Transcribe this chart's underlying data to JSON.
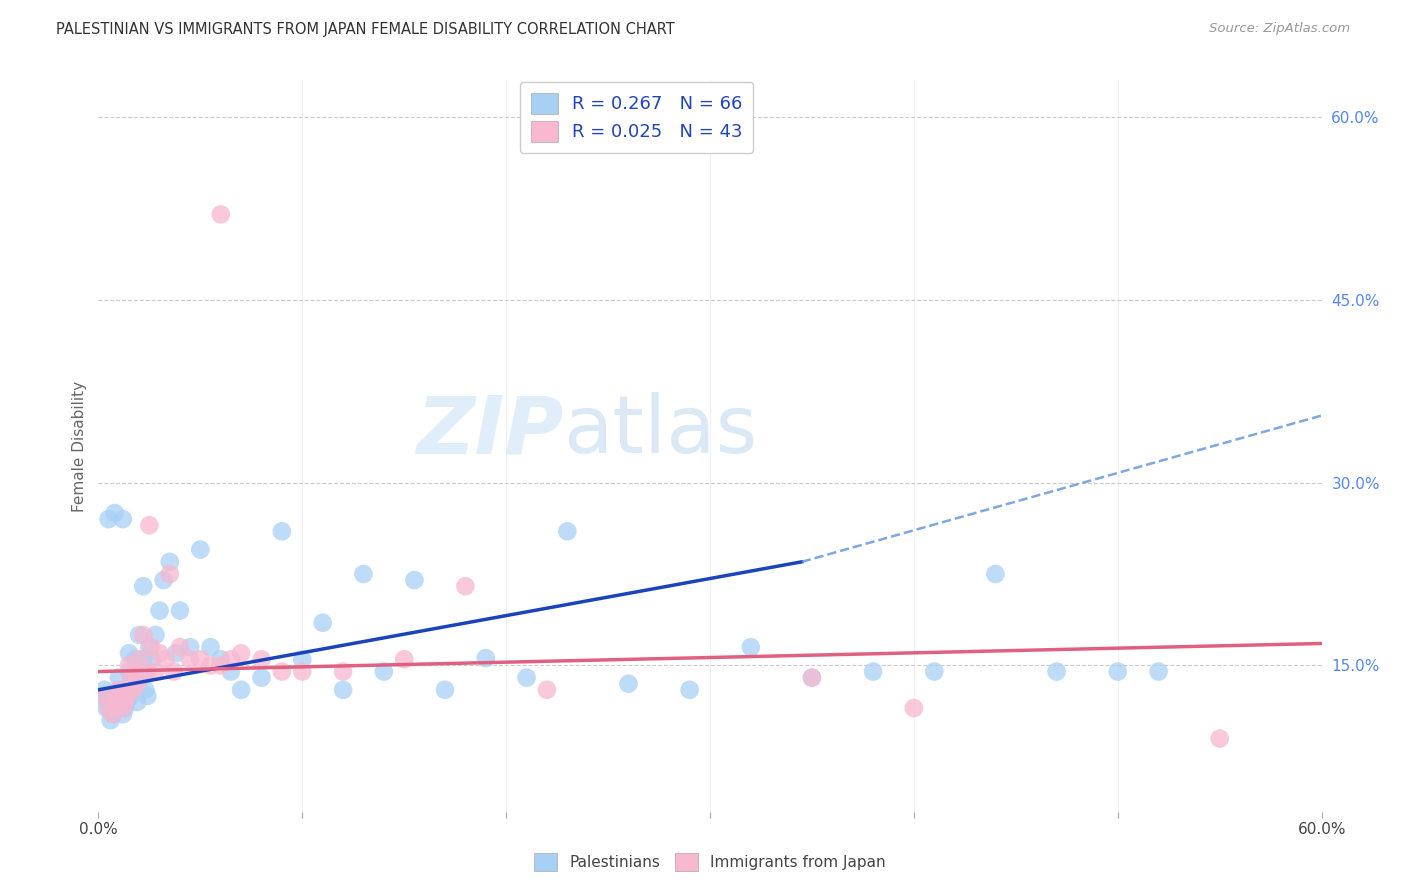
{
  "title": "PALESTINIAN VS IMMIGRANTS FROM JAPAN FEMALE DISABILITY CORRELATION CHART",
  "source": "Source: ZipAtlas.com",
  "ylabel": "Female Disability",
  "xlim": [
    0.0,
    0.6
  ],
  "ylim": [
    0.03,
    0.63
  ],
  "right_yticks": [
    0.15,
    0.3,
    0.45,
    0.6
  ],
  "right_yticklabels": [
    "15.0%",
    "30.0%",
    "45.0%",
    "60.0%"
  ],
  "blue_R": 0.267,
  "blue_N": 66,
  "pink_R": 0.025,
  "pink_N": 43,
  "blue_color": "#a8d0f5",
  "pink_color": "#f7b8d0",
  "trend_blue_solid_color": "#1a44bb",
  "trend_blue_dashed_color": "#6699dd",
  "trend_pink_color": "#e06080",
  "background": "#ffffff",
  "grid_color": "#cccccc",
  "legend_label_blue": "Palestinians",
  "legend_label_pink": "Immigrants from Japan",
  "blue_trend_x0": 0.0,
  "blue_trend_y0": 0.13,
  "blue_trend_x_solid_end": 0.345,
  "blue_trend_y_solid_end": 0.235,
  "blue_trend_x1": 0.6,
  "blue_trend_y1": 0.355,
  "pink_trend_x0": 0.0,
  "pink_trend_y0": 0.145,
  "pink_trend_x1": 0.6,
  "pink_trend_y1": 0.168,
  "blue_x": [
    0.002,
    0.003,
    0.004,
    0.005,
    0.006,
    0.007,
    0.008,
    0.009,
    0.01,
    0.01,
    0.01,
    0.011,
    0.012,
    0.013,
    0.014,
    0.015,
    0.015,
    0.016,
    0.017,
    0.018,
    0.019,
    0.02,
    0.021,
    0.022,
    0.023,
    0.024,
    0.025,
    0.026,
    0.028,
    0.03,
    0.032,
    0.035,
    0.038,
    0.04,
    0.045,
    0.05,
    0.055,
    0.06,
    0.065,
    0.07,
    0.08,
    0.09,
    0.1,
    0.11,
    0.12,
    0.13,
    0.14,
    0.155,
    0.17,
    0.19,
    0.21,
    0.23,
    0.26,
    0.29,
    0.32,
    0.35,
    0.38,
    0.41,
    0.44,
    0.47,
    0.5,
    0.52,
    0.005,
    0.008,
    0.012,
    0.022
  ],
  "blue_y": [
    0.125,
    0.13,
    0.115,
    0.12,
    0.105,
    0.11,
    0.115,
    0.12,
    0.14,
    0.13,
    0.115,
    0.125,
    0.11,
    0.115,
    0.12,
    0.16,
    0.145,
    0.125,
    0.13,
    0.155,
    0.12,
    0.175,
    0.14,
    0.155,
    0.13,
    0.125,
    0.165,
    0.155,
    0.175,
    0.195,
    0.22,
    0.235,
    0.16,
    0.195,
    0.165,
    0.245,
    0.165,
    0.155,
    0.145,
    0.13,
    0.14,
    0.26,
    0.155,
    0.185,
    0.13,
    0.225,
    0.145,
    0.22,
    0.13,
    0.156,
    0.14,
    0.26,
    0.135,
    0.13,
    0.165,
    0.14,
    0.145,
    0.145,
    0.225,
    0.145,
    0.145,
    0.145,
    0.27,
    0.275,
    0.27,
    0.215
  ],
  "pink_x": [
    0.003,
    0.005,
    0.007,
    0.008,
    0.009,
    0.01,
    0.011,
    0.012,
    0.013,
    0.014,
    0.015,
    0.016,
    0.017,
    0.018,
    0.019,
    0.02,
    0.022,
    0.024,
    0.026,
    0.028,
    0.03,
    0.033,
    0.037,
    0.04,
    0.045,
    0.05,
    0.055,
    0.06,
    0.065,
    0.07,
    0.08,
    0.09,
    0.1,
    0.12,
    0.15,
    0.18,
    0.22,
    0.35,
    0.4,
    0.55,
    0.06,
    0.025,
    0.035
  ],
  "pink_y": [
    0.125,
    0.115,
    0.11,
    0.12,
    0.125,
    0.13,
    0.125,
    0.115,
    0.12,
    0.125,
    0.15,
    0.14,
    0.13,
    0.145,
    0.135,
    0.155,
    0.175,
    0.145,
    0.165,
    0.145,
    0.16,
    0.155,
    0.145,
    0.165,
    0.155,
    0.155,
    0.15,
    0.15,
    0.155,
    0.16,
    0.155,
    0.145,
    0.145,
    0.145,
    0.155,
    0.215,
    0.13,
    0.14,
    0.115,
    0.09,
    0.52,
    0.265,
    0.225
  ]
}
